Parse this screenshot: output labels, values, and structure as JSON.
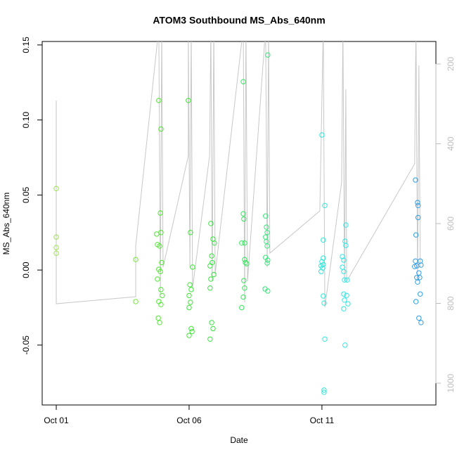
{
  "chart_data": {
    "type": "scatter",
    "title": "ATOM3 Southbound MS_Abs_640nm",
    "x_label": "Date",
    "y_label": "MS_Abs_640nm",
    "xlim": [
      -0.53,
      14.29
    ],
    "ylim": [
      -0.0899,
      0.1523
    ],
    "y2lim": [
      1054.6,
      143.6
    ],
    "xticks": [
      {
        "value": 0,
        "label": "Oct 01"
      },
      {
        "value": 5,
        "label": "Oct 06"
      },
      {
        "value": 10,
        "label": "Oct 11"
      }
    ],
    "yticks": [
      {
        "value": -0.05,
        "label": "-0.05"
      },
      {
        "value": 0,
        "label": "0.00"
      },
      {
        "value": 0.05,
        "label": "0.05"
      },
      {
        "value": 0.1,
        "label": "0.10"
      },
      {
        "value": 0.15,
        "label": "0.15"
      }
    ],
    "y2ticks": [
      200,
      400,
      600,
      800,
      1000
    ],
    "axis_color": "#000000",
    "y2_axis_color": "#bebebe",
    "series": [
      {
        "type": "line",
        "axis": "y2",
        "color": "#c8c8c8",
        "x": [
          0,
          0,
          2.99,
          2.99,
          3.86,
          3.92,
          3.97,
          4.02,
          4.97,
          4.97,
          5.03,
          5.08,
          5.13,
          5.77,
          5.82,
          5.87,
          5.93,
          5.98,
          7.04,
          7.09,
          7.14,
          7.2,
          7.88,
          7.94,
          7.99,
          8.04,
          9.92,
          10.05,
          10.11,
          10.74,
          10.79,
          10.85,
          10.9,
          10.93,
          13.49,
          13.54,
          13.6,
          13.65,
          13.7
        ],
        "values": [
          291.6,
          800.9,
          783.3,
          656.4,
          110.1,
          779.7,
          110.1,
          709.3,
          430.8,
          110.1,
          709.3,
          110.1,
          762.1,
          430.8,
          110.1,
          744.5,
          110.1,
          726.9,
          110.1,
          797.4,
          110.1,
          744.5,
          110.1,
          709.3,
          110.1,
          674.0,
          568.3,
          110.1,
          809.7,
          497.8,
          110.1,
          744.5,
          263.4,
          744.5,
          450.2,
          110.1,
          744.5,
          203.5,
          709.3
        ]
      },
      {
        "type": "scatter",
        "color": "#9be34d",
        "x": [
          0,
          0,
          0,
          0
        ],
        "values": [
          0.0543,
          0.022,
          0.015,
          0.0112
        ]
      },
      {
        "type": "scatter",
        "color": "#6fe83a",
        "x": [
          2.99,
          2.99
        ],
        "values": [
          0.007,
          -0.021
        ]
      },
      {
        "type": "scatter",
        "color": "#4de82e",
        "x": [
          3.86,
          3.94,
          3.92,
          3.94,
          3.78,
          3.81,
          3.89,
          3.97,
          3.86,
          3.92,
          3.81,
          3.94,
          3.99,
          3.86,
          3.94,
          3.84,
          3.89
        ],
        "values": [
          0.113,
          0.094,
          0.038,
          0.025,
          0.024,
          0.017,
          0.016,
          0.005,
          0.0005,
          -0.001,
          -0.006,
          -0.013,
          -0.017,
          -0.021,
          -0.023,
          -0.032,
          -0.035
        ]
      },
      {
        "type": "scatter",
        "color": "#3ee635",
        "x": [
          4.97,
          5.05,
          5.13,
          5.03,
          5.08,
          5.0,
          5.05,
          5.0,
          5.08,
          5.11,
          5.0
        ],
        "values": [
          0.113,
          0.025,
          0.002,
          -0.0098,
          -0.013,
          -0.017,
          -0.0215,
          -0.025,
          -0.039,
          -0.041,
          -0.0436
        ]
      },
      {
        "type": "scatter",
        "color": "#35e63f",
        "x": [
          5.82,
          5.9,
          5.95,
          5.85,
          5.87,
          5.79,
          5.93,
          5.82,
          5.79,
          5.85,
          5.9,
          5.79
        ],
        "values": [
          0.031,
          0.0206,
          0.018,
          0.0094,
          0.005,
          0.0028,
          -0.003,
          -0.006,
          -0.012,
          -0.035,
          -0.039,
          -0.046
        ]
      },
      {
        "type": "scatter",
        "color": "#35e65c",
        "x": [
          7.04,
          7.04,
          7.06,
          6.98,
          7.09,
          7.09,
          7.12,
          7.17,
          7.06,
          7.09,
          7.04,
          6.98
        ],
        "values": [
          0.1255,
          0.0375,
          0.034,
          0.018,
          0.018,
          0.007,
          0.005,
          0.0042,
          -0.007,
          -0.012,
          -0.018,
          -0.025
        ]
      },
      {
        "type": "scatter",
        "color": "#35e67a",
        "x": [
          7.96,
          7.88,
          7.91,
          7.94,
          7.88,
          7.91,
          7.94,
          7.88,
          7.96,
          7.94,
          7.86,
          7.96
        ],
        "values": [
          0.1433,
          0.036,
          0.0286,
          0.025,
          0.022,
          0.019,
          0.016,
          0.0084,
          0.0066,
          0.0047,
          -0.0126,
          -0.014
        ]
      },
      {
        "type": "scatter",
        "color": "#2ee6d8",
        "x": [
          10.0,
          10.11,
          10.05,
          10.05,
          10.0,
          10.05,
          9.97,
          10.03,
          9.97,
          10.05,
          10.08,
          10.11,
          10.08,
          10.08
        ],
        "values": [
          0.09,
          0.043,
          0.02,
          0.008,
          0.0056,
          0.0037,
          0.0028,
          0.0014,
          -0.001,
          -0.0173,
          -0.022,
          -0.046,
          -0.08,
          -0.0815
        ]
      },
      {
        "type": "scatter",
        "color": "#2ee6e6",
        "x": [
          10.9,
          10.87,
          10.9,
          10.77,
          10.82,
          10.77,
          10.82,
          10.85,
          10.95,
          10.82,
          10.93,
          10.85,
          10.98,
          10.82,
          10.87
        ],
        "values": [
          0.03,
          0.0192,
          0.0164,
          0.009,
          0.0066,
          0.0019,
          -0.001,
          -0.0066,
          -0.0066,
          -0.016,
          -0.0169,
          -0.02,
          -0.0225,
          -0.0258,
          -0.05
        ]
      },
      {
        "type": "scatter",
        "color": "#2e9ee6",
        "x": [
          13.52,
          13.6,
          13.62,
          13.62,
          13.54,
          13.52,
          13.7,
          13.49,
          13.57,
          13.73,
          13.65,
          13.57,
          13.68,
          13.6,
          13.7,
          13.54,
          13.65,
          13.73
        ],
        "values": [
          0.06,
          0.045,
          0.043,
          0.035,
          0.0234,
          0.006,
          0.006,
          0.0023,
          0.0028,
          0.0033,
          -0.0019,
          -0.005,
          -0.005,
          -0.008,
          -0.016,
          -0.021,
          -0.032,
          -0.035
        ]
      }
    ]
  }
}
